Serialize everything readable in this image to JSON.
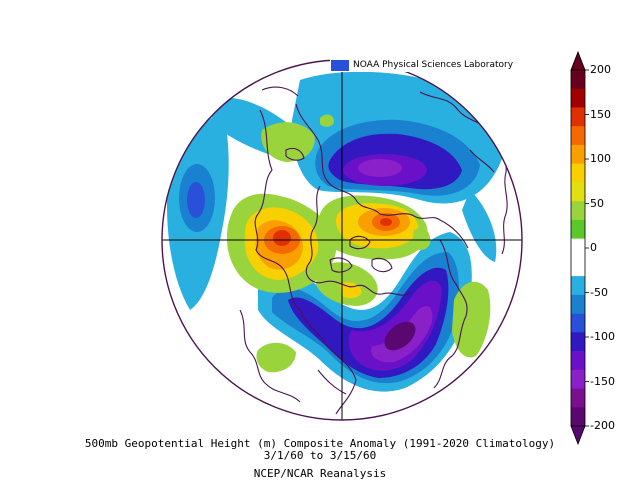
{
  "header": {
    "credit": "NOAA Physical Sciences Laboratory"
  },
  "caption": {
    "title": "500mb Geopotential Height (m) Composite Anomaly (1991-2020 Climatology)",
    "dates": "3/1/60  to 3/15/60",
    "source": "NCEP/NCAR Reanalysis"
  },
  "colorbar": {
    "ticks": [
      "200",
      "150",
      "100",
      "50",
      "0",
      "-50",
      "-100",
      "-150",
      "-200"
    ],
    "colors": [
      "#67001f",
      "#a00000",
      "#e03000",
      "#f56a00",
      "#f9a000",
      "#f8d000",
      "#e0e010",
      "#9ad43c",
      "#5ac828",
      "#ffffff",
      "#ffffff",
      "#2ab0e0",
      "#1a80d0",
      "#2850d8",
      "#3218c0",
      "#6a10c8",
      "#8a20c8",
      "#7a1090",
      "#5a0870"
    ]
  },
  "map": {
    "projection": "north-polar-stereographic",
    "colors": {
      "outline": "#4b1450",
      "grid": "#000000"
    }
  }
}
